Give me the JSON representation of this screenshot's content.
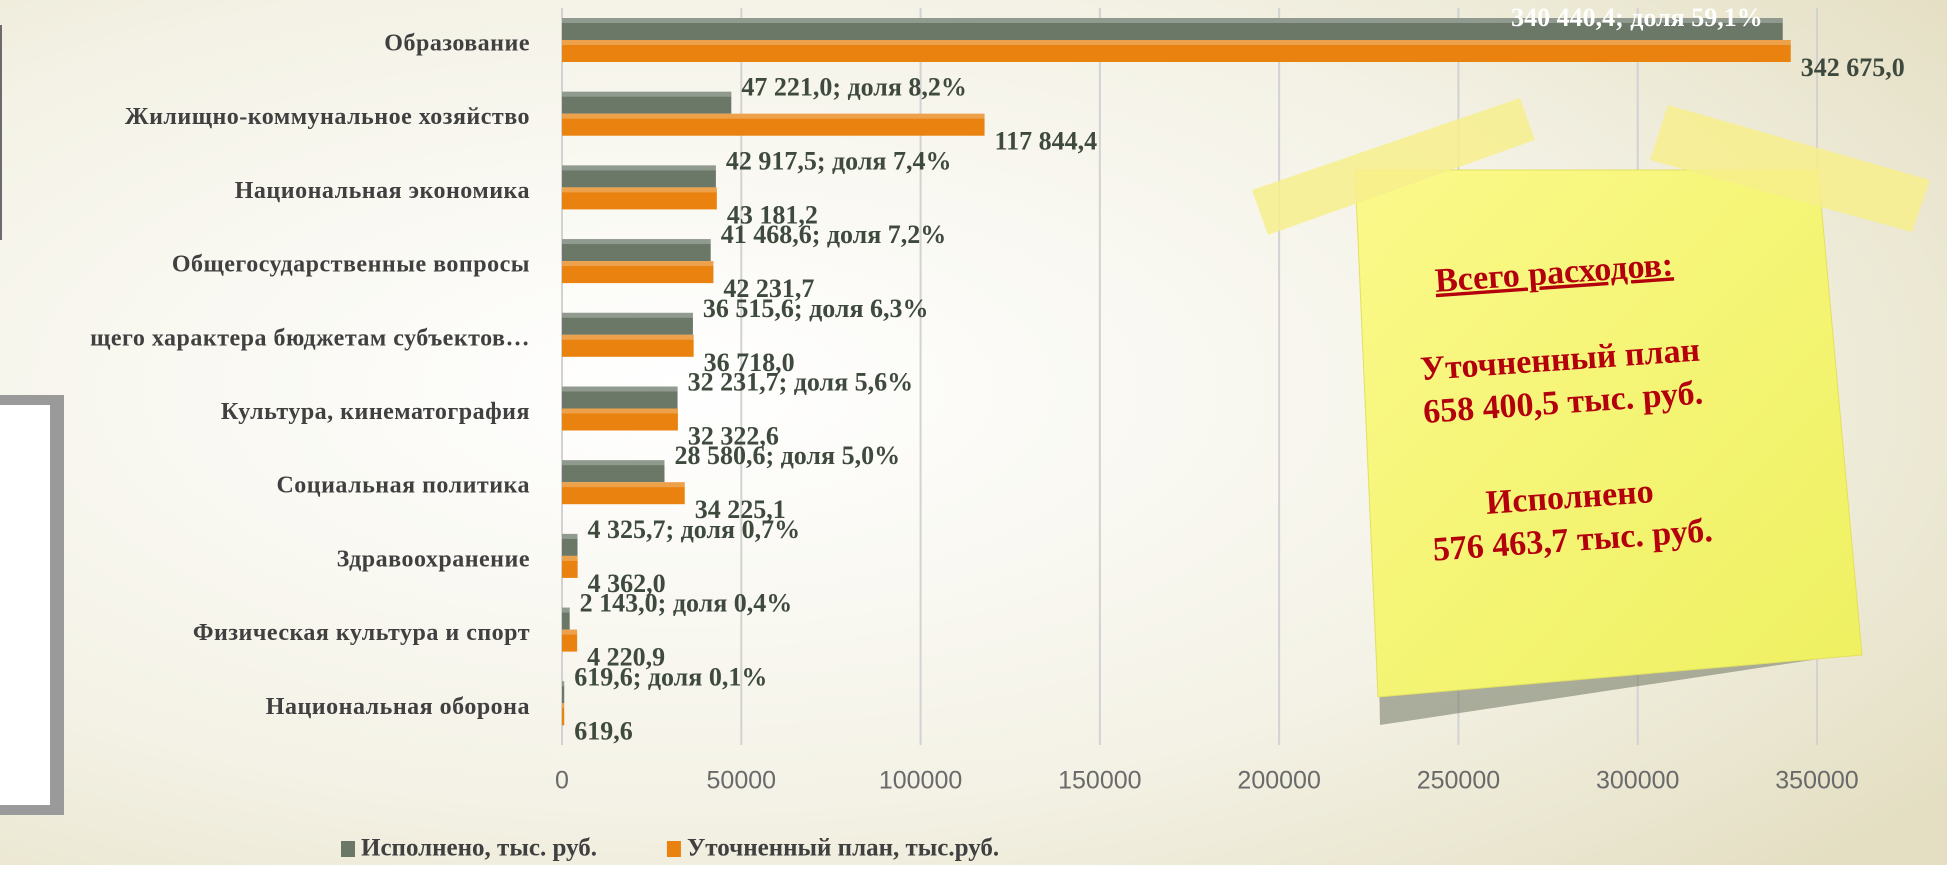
{
  "chart_data": {
    "type": "bar",
    "orientation": "horizontal",
    "categories": [
      "Образование",
      "Жилищно-коммунальное  хозяйство",
      "Национальная  экономика",
      "Общегосударственные  вопросы",
      "щего характера бюджетам субъектов…",
      "Культура, кинематография",
      "Социальная  политика",
      "Здравоохранение",
      "Физическая культура и спорт",
      "Национальная  оборона"
    ],
    "series": [
      {
        "name": "Исполнено, тыс. руб.",
        "color": "#6b7868",
        "values": [
          340440.4,
          47221.0,
          42917.5,
          41468.6,
          36515.6,
          32231.7,
          28580.6,
          4325.7,
          2143.0,
          619.6
        ],
        "value_labels": [
          "340 440,4; доля 59,1%",
          "47 221,0; доля 8,2%",
          "42 917,5; доля 7,4%",
          "41 468,6; доля 7,2%",
          "36 515,6; доля 6,3%",
          "32 231,7; доля 5,6%",
          "28 580,6; доля 5,0%",
          "4 325,7; доля 0,7%",
          "2 143,0; доля 0,4%",
          "619,6; доля 0,1%"
        ]
      },
      {
        "name": "Уточненный план, тыс.руб.",
        "color": "#e9820f",
        "values": [
          342675.0,
          117844.4,
          43181.2,
          42231.7,
          36718.0,
          32322.6,
          34225.1,
          4362.0,
          4220.9,
          619.6
        ],
        "value_labels": [
          "342 675,0",
          "117 844,4",
          "43 181,2",
          "42 231,7",
          "36 718,0",
          "32 322,6",
          "34 225,1",
          "4 362,0",
          "4 220,9",
          "619,6"
        ]
      }
    ],
    "xlim": [
      0,
      350000
    ],
    "xticks": [
      0,
      50000,
      100000,
      150000,
      200000,
      250000,
      300000,
      350000
    ],
    "grid": true,
    "legend": "bottom"
  },
  "note": {
    "title": "Всего расходов:",
    "lines": [
      "Уточненный план",
      "658 400,5 тыс. руб.",
      "Исполнено",
      "576 463,7 тыс. руб."
    ]
  }
}
